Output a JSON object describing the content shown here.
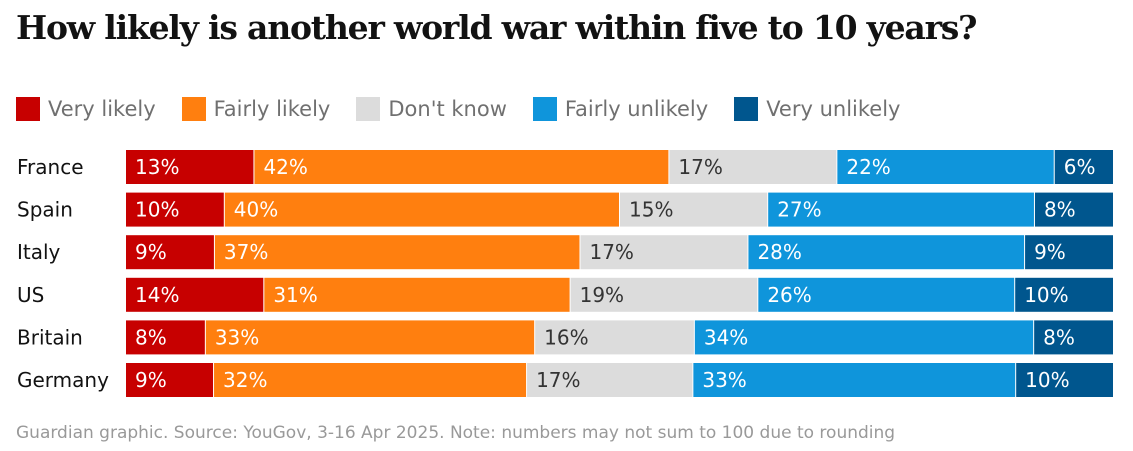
{
  "chart_data": {
    "type": "bar",
    "orientation": "horizontal",
    "stacked": true,
    "title": "How likely is another world war within five to 10 years?",
    "categories": [
      "France",
      "Spain",
      "Italy",
      "US",
      "Britain",
      "Germany"
    ],
    "series": [
      {
        "name": "Very likely",
        "color": "#c70000",
        "values": [
          13,
          10,
          9,
          14,
          8,
          9
        ]
      },
      {
        "name": "Fairly likely",
        "color": "#ff7f0f",
        "values": [
          42,
          40,
          37,
          31,
          33,
          32
        ]
      },
      {
        "name": "Don't know",
        "color": "#dcdcdc",
        "values": [
          17,
          15,
          17,
          19,
          16,
          17
        ]
      },
      {
        "name": "Fairly unlikely",
        "color": "#0f95db",
        "values": [
          22,
          27,
          28,
          26,
          34,
          33
        ]
      },
      {
        "name": "Very unlikely",
        "color": "#00568e",
        "values": [
          6,
          8,
          9,
          10,
          8,
          10
        ]
      }
    ],
    "value_suffix": "%",
    "legend_position": "top",
    "grid": false
  },
  "footer": "Guardian graphic. Source: YouGov, 3-16 Apr 2025. Note: numbers may not sum to 100 due to rounding"
}
